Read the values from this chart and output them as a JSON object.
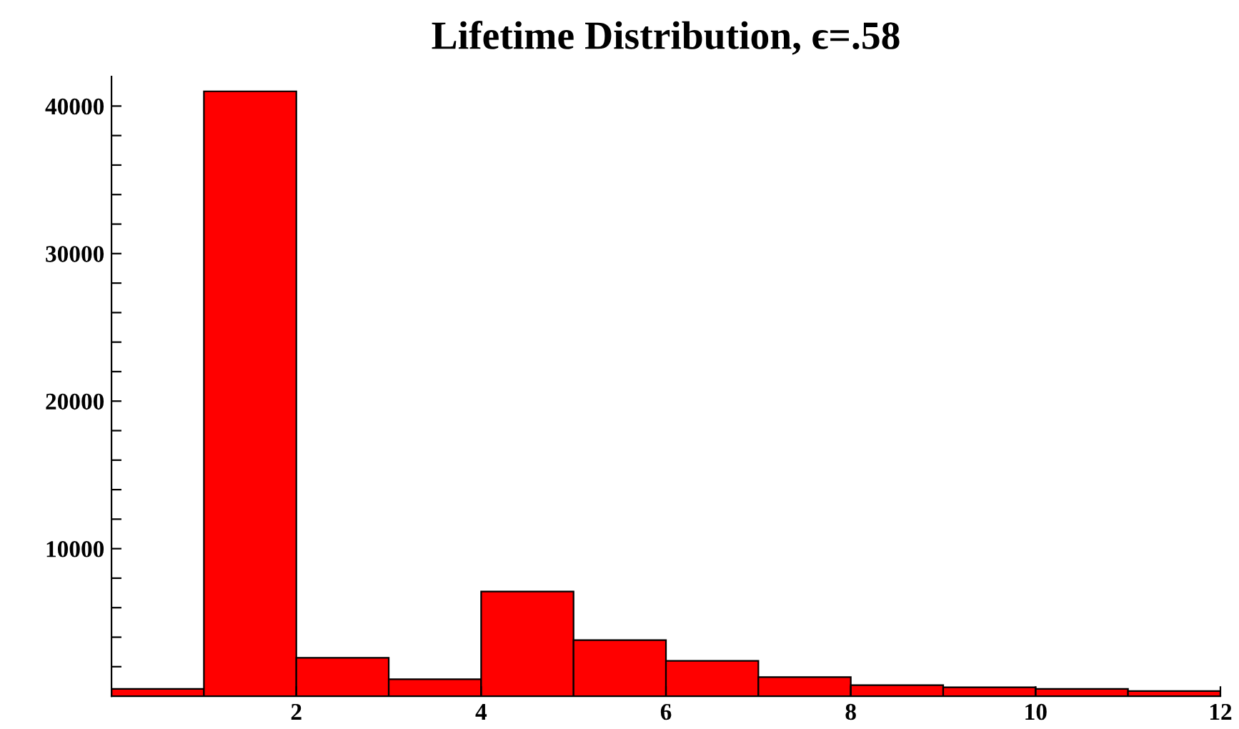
{
  "chart_data": {
    "type": "histogram",
    "title": "Lifetime Distribution, ϵ=.58",
    "bins": [
      0,
      1,
      2,
      3,
      4,
      5,
      6,
      7,
      8,
      9,
      10,
      11,
      12
    ],
    "values": [
      500,
      41000,
      2600,
      1150,
      7100,
      3800,
      2400,
      1300,
      750,
      600,
      500,
      350
    ],
    "color": "#ff0000",
    "xlim": [
      0,
      12
    ],
    "xticks": [
      2,
      4,
      6,
      8,
      10,
      12
    ],
    "ylim": [
      0,
      42000
    ],
    "yticks": [
      {
        "value": 2000,
        "label": null
      },
      {
        "value": 4000,
        "label": null
      },
      {
        "value": 6000,
        "label": null
      },
      {
        "value": 8000,
        "label": null
      },
      10000,
      {
        "value": 12000,
        "label": null
      },
      {
        "value": 14000,
        "label": null
      },
      {
        "value": 16000,
        "label": null
      },
      {
        "value": 18000,
        "label": null
      },
      20000,
      {
        "value": 22000,
        "label": null
      },
      {
        "value": 24000,
        "label": null
      },
      {
        "value": 26000,
        "label": null
      },
      {
        "value": 28000,
        "label": null
      },
      30000,
      {
        "value": 32000,
        "label": null
      },
      {
        "value": 34000,
        "label": null
      },
      {
        "value": 36000,
        "label": null
      },
      {
        "value": 38000,
        "label": null
      },
      40000
    ],
    "grid": false
  }
}
